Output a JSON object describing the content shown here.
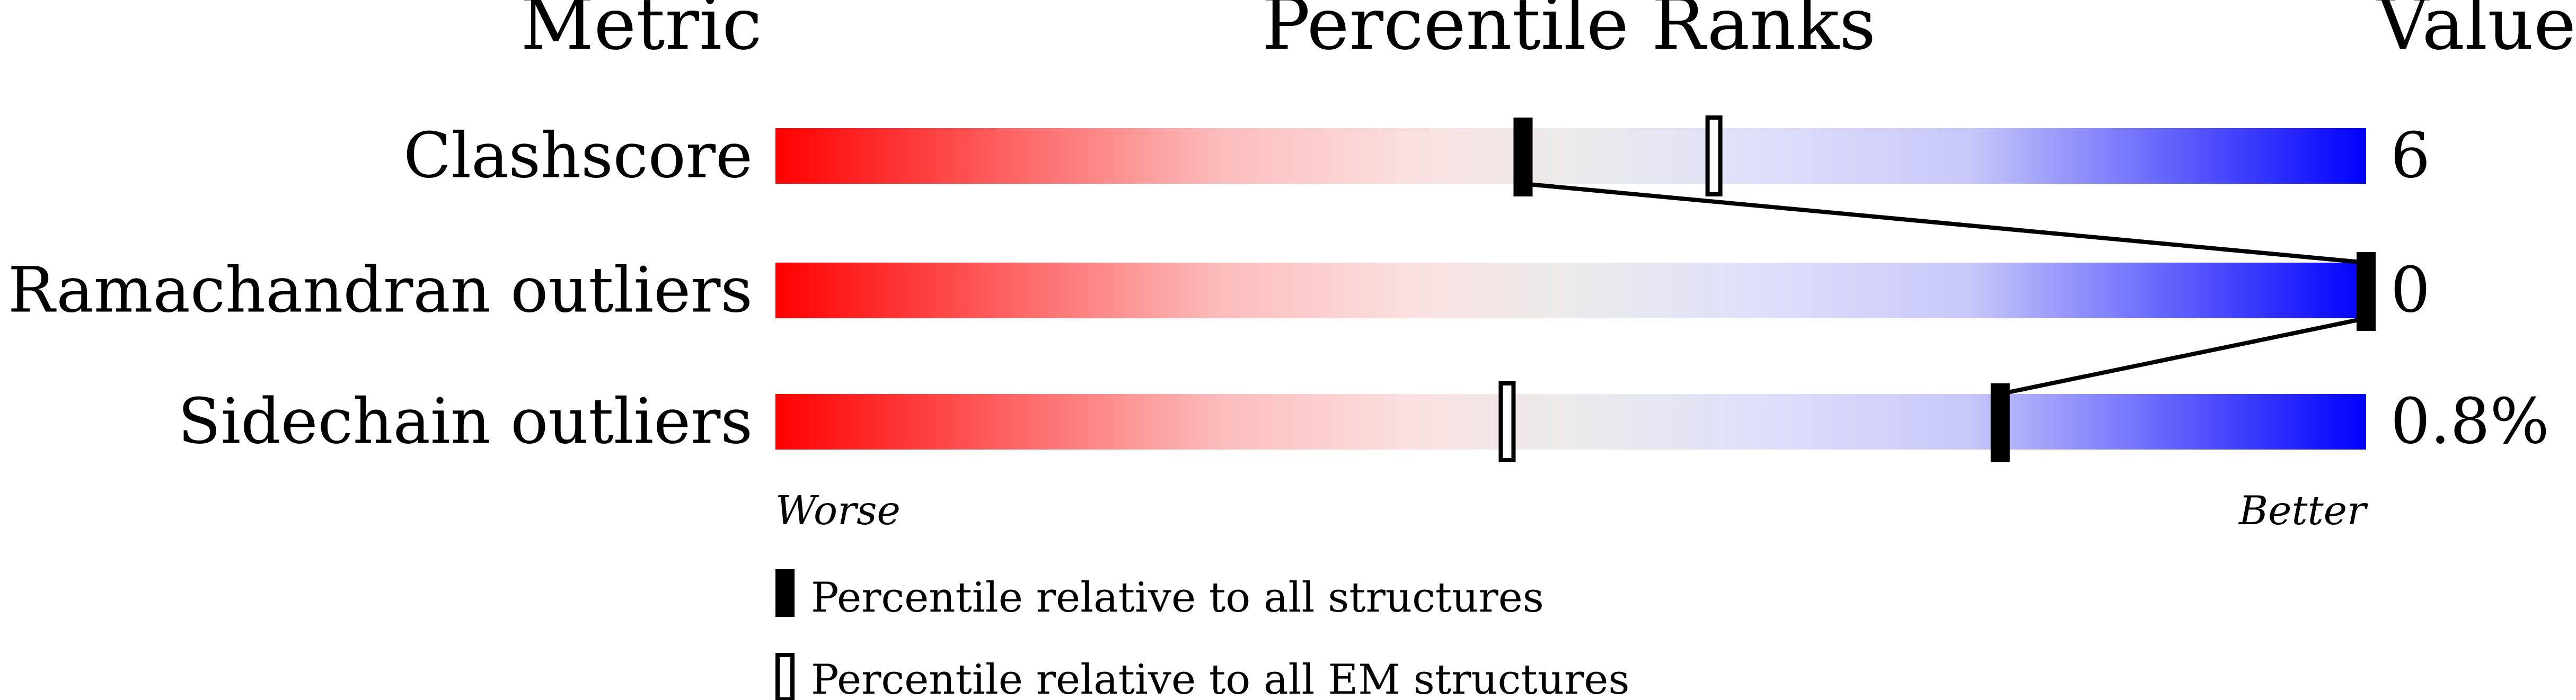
{
  "chart_data": {
    "type": "bar",
    "title": "Percentile Ranks",
    "header_metric": "Metric",
    "header_value": "Value",
    "xlim": [
      0,
      100
    ],
    "worse_label": "Worse",
    "better_label": "Better",
    "gradient_colors": [
      "#ff0000",
      "#fbe0e0",
      "#ebebeb",
      "#dfdffb",
      "#0000ff"
    ],
    "metrics": [
      {
        "name": "Clashscore",
        "value": "6",
        "percentile_all": 47,
        "percentile_em": 59
      },
      {
        "name": "Ramachandran outliers",
        "value": "0",
        "percentile_all": 100,
        "percentile_em": 100
      },
      {
        "name": "Sidechain outliers",
        "value": "0.8%",
        "percentile_all": 77,
        "percentile_em": 46
      }
    ],
    "legend": [
      {
        "label": "Percentile relative to all structures",
        "marker": "filled"
      },
      {
        "label": "Percentile relative to all EM structures",
        "marker": "hollow"
      }
    ]
  }
}
